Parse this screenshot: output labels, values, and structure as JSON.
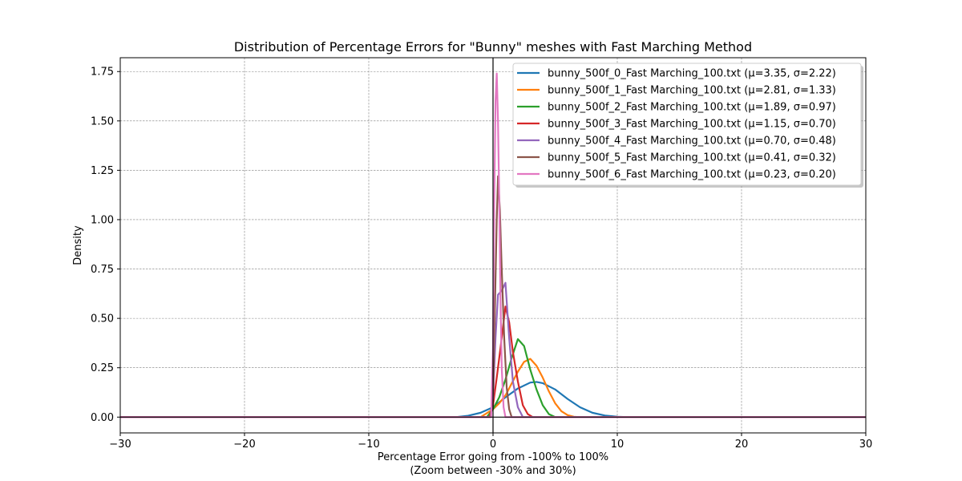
{
  "chart_data": {
    "type": "line",
    "title": "Distribution of Percentage Errors for \"Bunny\" meshes with Fast Marching Method",
    "xlabel": "Percentage Error going from -100% to 100%",
    "xlabel_sub": "(Zoom between -30% and 30%)",
    "ylabel": "Density",
    "xlim": [
      -30,
      30
    ],
    "ylim": [
      -0.08,
      1.82
    ],
    "xticks": [
      -30,
      -20,
      -10,
      0,
      10,
      20,
      30
    ],
    "xtick_labels": [
      "−30",
      "−20",
      "−10",
      "0",
      "10",
      "20",
      "30"
    ],
    "yticks": [
      0.0,
      0.25,
      0.5,
      0.75,
      1.0,
      1.25,
      1.5,
      1.75
    ],
    "ytick_labels": [
      "0.00",
      "0.25",
      "0.50",
      "0.75",
      "1.00",
      "1.25",
      "1.50",
      "1.75"
    ],
    "grid": true,
    "grid_color": "#808080",
    "legend_position": "top-right",
    "reference_lines": {
      "vertical_x": 0,
      "horizontal_y": 0
    },
    "series": [
      {
        "name": "bunny_500f_0_Fast Marching_100.txt (μ=3.35, σ=2.22)",
        "color": "#1f77b4",
        "x": [
          -30,
          -3,
          -2,
          -1,
          0,
          1,
          2,
          3,
          3.5,
          4,
          5,
          6,
          7,
          8,
          9,
          10,
          11,
          30
        ],
        "y": [
          0,
          0,
          0.007,
          0.022,
          0.05,
          0.1,
          0.145,
          0.175,
          0.178,
          0.172,
          0.14,
          0.092,
          0.05,
          0.022,
          0.008,
          0.002,
          0,
          0
        ]
      },
      {
        "name": "bunny_500f_1_Fast Marching_100.txt (μ=2.81, σ=1.33)",
        "color": "#ff7f0e",
        "x": [
          -30,
          -1,
          0,
          0.5,
          1,
          1.5,
          2,
          2.5,
          3,
          3.5,
          4,
          4.5,
          5,
          5.5,
          6,
          6.5,
          7,
          30
        ],
        "y": [
          0,
          0,
          0.04,
          0.07,
          0.11,
          0.17,
          0.23,
          0.28,
          0.295,
          0.26,
          0.2,
          0.13,
          0.07,
          0.03,
          0.01,
          0.002,
          0,
          0
        ]
      },
      {
        "name": "bunny_500f_2_Fast Marching_100.txt (μ=1.89, σ=0.97)",
        "color": "#2ca02c",
        "x": [
          -30,
          -0.5,
          0,
          0.5,
          1,
          1.5,
          2,
          2.5,
          3,
          3.5,
          4,
          4.5,
          5,
          30
        ],
        "y": [
          0,
          0,
          0.04,
          0.1,
          0.19,
          0.3,
          0.395,
          0.36,
          0.24,
          0.14,
          0.06,
          0.015,
          0,
          0
        ]
      },
      {
        "name": "bunny_500f_3_Fast Marching_100.txt (μ=1.15, σ=0.70)",
        "color": "#d62728",
        "x": [
          -30,
          -0.3,
          0,
          0.3,
          0.6,
          1.0,
          1.3,
          1.6,
          2.0,
          2.4,
          2.8,
          3.2,
          30
        ],
        "y": [
          0,
          0,
          0.06,
          0.2,
          0.35,
          0.56,
          0.48,
          0.33,
          0.18,
          0.06,
          0.015,
          0,
          0
        ]
      },
      {
        "name": "bunny_500f_4_Fast Marching_100.txt (μ=0.70, σ=0.48)",
        "color": "#9467bd",
        "x": [
          -30,
          -0.2,
          0,
          0.2,
          0.4,
          0.7,
          1.0,
          1.3,
          1.6,
          2.0,
          2.4,
          30
        ],
        "y": [
          0,
          0,
          0.1,
          0.4,
          0.62,
          0.64,
          0.68,
          0.4,
          0.18,
          0.05,
          0,
          0
        ]
      },
      {
        "name": "bunny_500f_5_Fast Marching_100.txt (μ=0.41, σ=0.32)",
        "color": "#8c564b",
        "x": [
          -30,
          -0.2,
          0,
          0.15,
          0.3,
          0.4,
          0.55,
          0.7,
          0.9,
          1.1,
          1.3,
          1.5,
          30
        ],
        "y": [
          0,
          0,
          0.12,
          0.55,
          1.0,
          1.22,
          1.05,
          0.75,
          0.4,
          0.15,
          0.04,
          0,
          0
        ]
      },
      {
        "name": "bunny_500f_6_Fast Marching_100.txt (μ=0.23, σ=0.20)",
        "color": "#e377c2",
        "x": [
          -30,
          -0.15,
          0,
          0.1,
          0.2,
          0.3,
          0.4,
          0.5,
          0.6,
          0.7,
          0.85,
          1.0,
          30
        ],
        "y": [
          0,
          0,
          0.35,
          1.1,
          1.6,
          1.74,
          1.5,
          1.1,
          0.6,
          0.25,
          0.05,
          0,
          0
        ]
      }
    ]
  }
}
